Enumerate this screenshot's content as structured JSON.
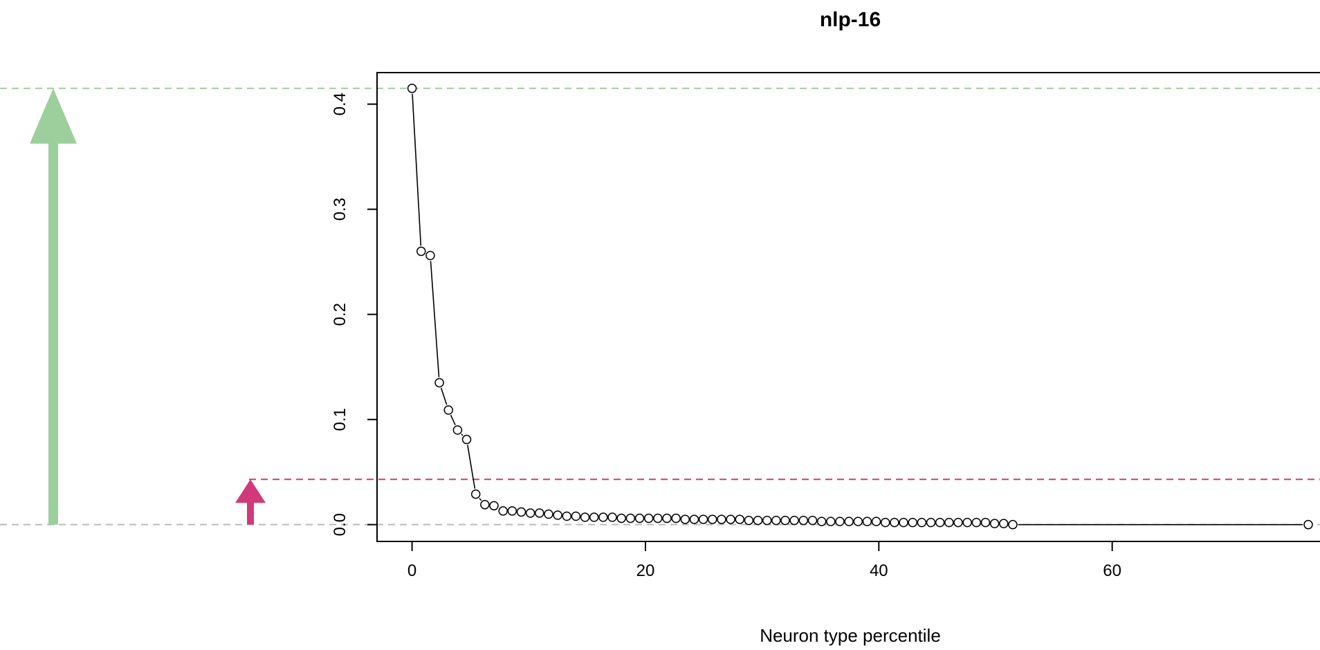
{
  "chart_data": {
    "type": "line",
    "title": "nlp-16",
    "xlabel": "Neuron type percentile",
    "ylabel": "",
    "xlim": [
      -3,
      80
    ],
    "ylim": [
      -0.016,
      0.43
    ],
    "x_ticks": [
      0,
      20,
      40,
      60
    ],
    "y_ticks": [
      0.0,
      0.1,
      0.2,
      0.3,
      0.4
    ],
    "x_tick_labels": [
      "0",
      "20",
      "40",
      "60"
    ],
    "y_tick_labels": [
      "0.0",
      "0.1",
      "0.2",
      "0.3",
      "0.4"
    ],
    "grid": false,
    "legend": "none",
    "series": [
      {
        "x": [
          0,
          0.78,
          1.56,
          2.34,
          3.12,
          3.9,
          4.68,
          5.46,
          6.24,
          7.02,
          7.8,
          8.58,
          9.36,
          10.14,
          10.92,
          11.7,
          12.48,
          13.26,
          14.04,
          14.82,
          15.6,
          16.38,
          17.16,
          17.94,
          18.72,
          19.5,
          20.28,
          21.06,
          21.84,
          22.62,
          23.4,
          24.18,
          24.96,
          25.74,
          26.52,
          27.3,
          28.08,
          28.86,
          29.64,
          30.42,
          31.2,
          31.98,
          32.76,
          33.54,
          34.32,
          35.1,
          35.88,
          36.66,
          37.44,
          38.22,
          39.0,
          39.78,
          40.56,
          41.34,
          42.12,
          42.9,
          43.68,
          44.46,
          45.24,
          46.02,
          46.8,
          47.58,
          48.36,
          49.14,
          49.92,
          50.7,
          51.48,
          76.8
        ],
        "y": [
          0.415,
          0.26,
          0.256,
          0.135,
          0.109,
          0.09,
          0.081,
          0.029,
          0.019,
          0.018,
          0.013,
          0.013,
          0.012,
          0.011,
          0.011,
          0.01,
          0.009,
          0.008,
          0.008,
          0.007,
          0.007,
          0.007,
          0.007,
          0.006,
          0.006,
          0.006,
          0.006,
          0.006,
          0.006,
          0.006,
          0.005,
          0.005,
          0.005,
          0.005,
          0.005,
          0.005,
          0.005,
          0.004,
          0.004,
          0.004,
          0.004,
          0.004,
          0.004,
          0.004,
          0.004,
          0.003,
          0.003,
          0.003,
          0.003,
          0.003,
          0.003,
          0.003,
          0.002,
          0.002,
          0.002,
          0.002,
          0.002,
          0.002,
          0.002,
          0.002,
          0.002,
          0.002,
          0.002,
          0.002,
          0.001,
          0.001,
          0.0,
          0.0
        ]
      }
    ],
    "reference_lines": [
      {
        "y": 0.415,
        "color": "#9dcf9c",
        "style": "dashed"
      },
      {
        "y": 0.043,
        "color": "#d1397a",
        "style": "dashed"
      },
      {
        "y": 0.0,
        "color": "#bbbbbb",
        "style": "dashed"
      }
    ],
    "arrows": [
      {
        "from": 0.0,
        "to": 0.415,
        "color": "#9dcf9c"
      },
      {
        "from": 0.0,
        "to": 0.043,
        "color": "#d1397a"
      }
    ],
    "colors": {
      "line": "#000000",
      "marker": "#000000"
    }
  }
}
